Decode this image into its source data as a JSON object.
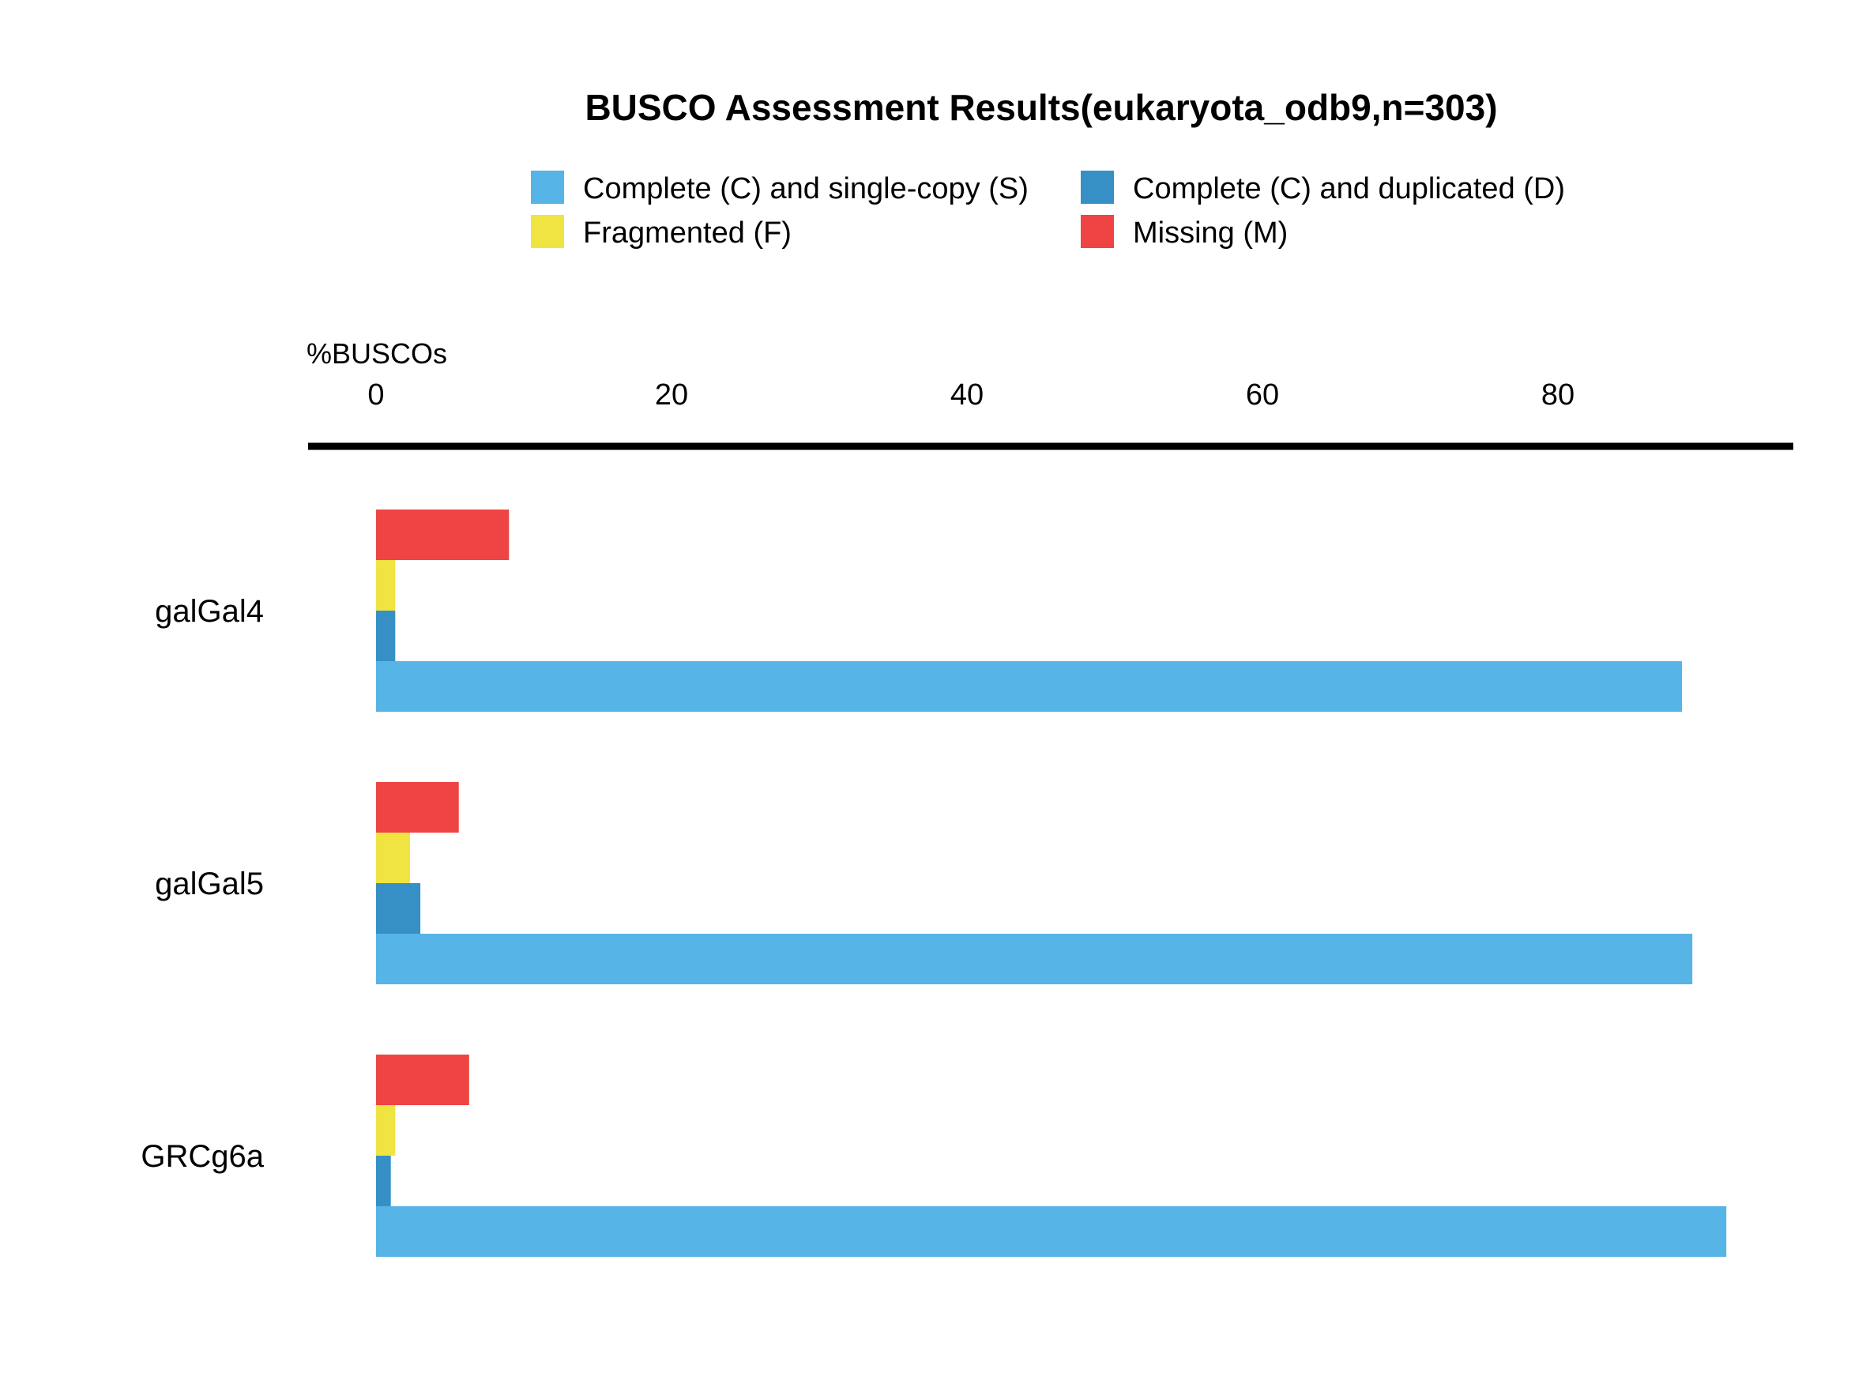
{
  "chart_data": {
    "type": "bar",
    "orientation": "horizontal",
    "title": "BUSCO Assessment Results(eukaryota_odb9,n=303)",
    "xlabel": "%BUSCOs",
    "ylabel": "",
    "xlim": [
      0,
      95
    ],
    "xticks": [
      0,
      20,
      40,
      60,
      80
    ],
    "axis_position": "top",
    "grid": false,
    "legend_position": "top-center",
    "categories": [
      "galGal4",
      "galGal5",
      "GRCg6a"
    ],
    "series": [
      {
        "name": "Complete (C) and single-copy (S)",
        "color": "#56B4E6",
        "values": [
          88.4,
          89.1,
          91.4
        ]
      },
      {
        "name": "Complete (C) and duplicated (D)",
        "color": "#3690C5",
        "values": [
          1.3,
          3.0,
          1.0
        ]
      },
      {
        "name": "Fragmented (F)",
        "color": "#F0E442",
        "values": [
          1.3,
          2.3,
          1.3
        ]
      },
      {
        "name": "Missing (M)",
        "color": "#EF4444",
        "values": [
          9.0,
          5.6,
          6.3
        ]
      }
    ]
  }
}
